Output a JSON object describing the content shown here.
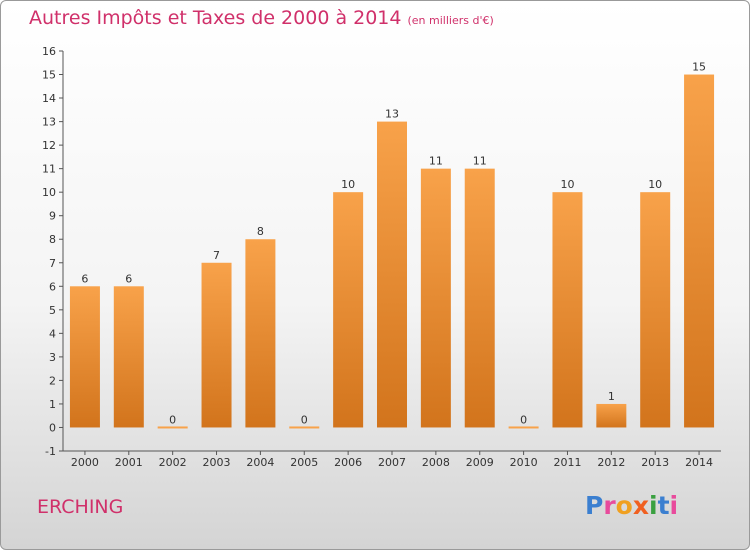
{
  "title": "Autres Impôts et Taxes de 2000 à 2014",
  "unit": "(en milliers d'€)",
  "location": "ERCHING",
  "logo": {
    "letters": [
      "P",
      "r",
      "o",
      "x",
      "i",
      "t",
      "i"
    ],
    "colors": [
      "#3b7fd0",
      "#e84b9c",
      "#f0a020",
      "#f06020",
      "#3aa040",
      "#3b7fd0",
      "#e84b9c"
    ]
  },
  "colors": {
    "bar_light": "#f8a24a",
    "bar_dark": "#d2741c",
    "accent": "#d0306a"
  },
  "chart_data": {
    "type": "bar",
    "categories": [
      "2000",
      "2001",
      "2002",
      "2003",
      "2004",
      "2005",
      "2006",
      "2007",
      "2008",
      "2009",
      "2010",
      "2011",
      "2012",
      "2013",
      "2014"
    ],
    "values": [
      6,
      6,
      0,
      7,
      8,
      0,
      10,
      13,
      11,
      11,
      0,
      10,
      1,
      10,
      15
    ],
    "ylim": [
      -1,
      16
    ],
    "yticks": [
      -1,
      0,
      1,
      2,
      3,
      4,
      5,
      6,
      7,
      8,
      9,
      10,
      11,
      12,
      13,
      14,
      15,
      16
    ],
    "grid": false,
    "legend": "none"
  }
}
